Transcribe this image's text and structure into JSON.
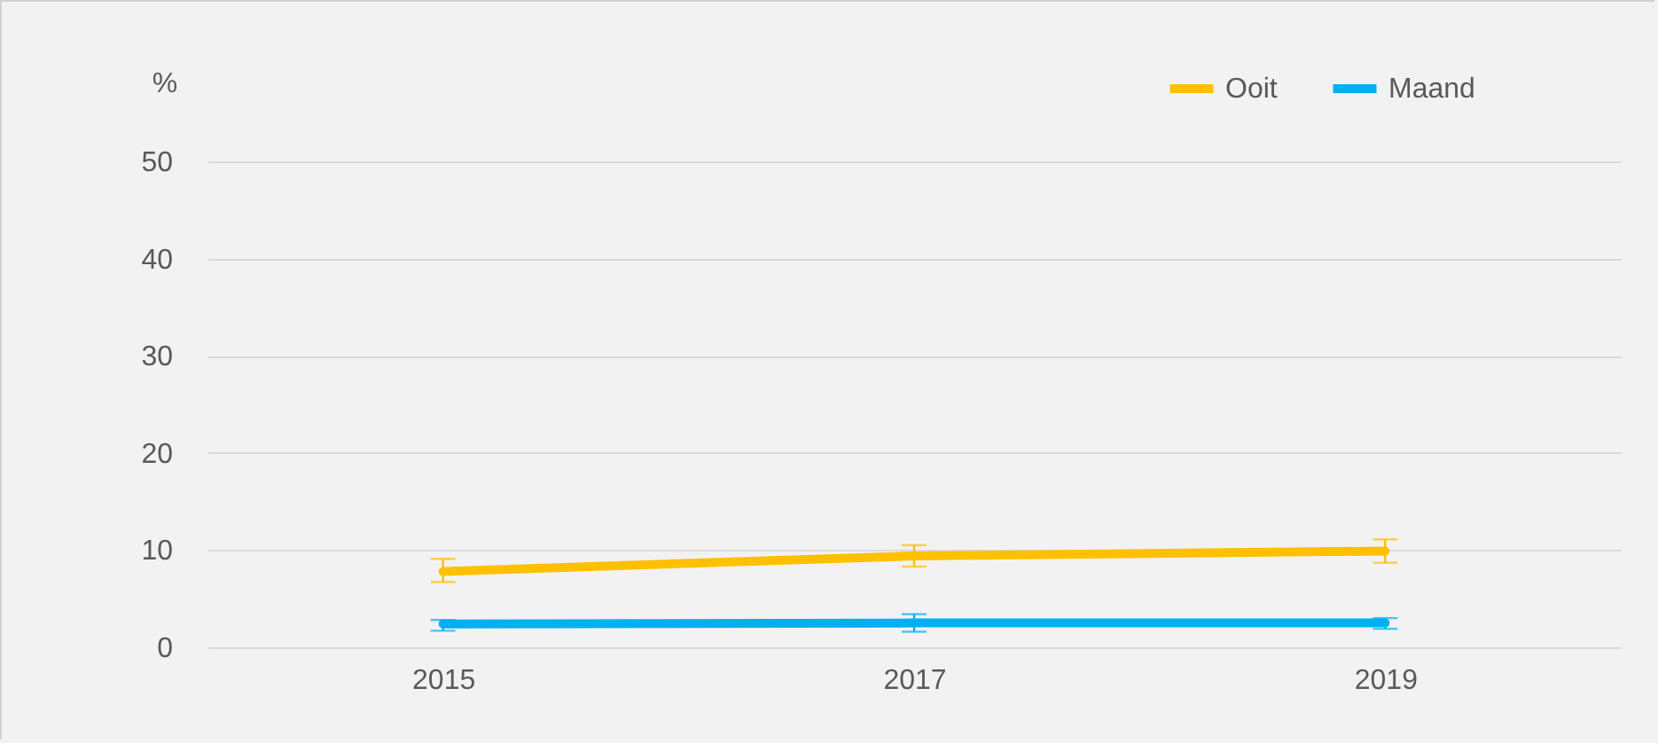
{
  "chart_data": {
    "type": "line",
    "ylabel": "%",
    "categories": [
      "2015",
      "2017",
      "2019"
    ],
    "series": [
      {
        "name": "Ooit",
        "color": "#ffc000",
        "values": [
          7.8,
          9.4,
          9.9
        ],
        "errors": [
          [
            6.7,
            9.1
          ],
          [
            8.3,
            10.5
          ],
          [
            8.7,
            11.1
          ]
        ]
      },
      {
        "name": "Maand",
        "color": "#00b0f0",
        "values": [
          2.4,
          2.5,
          2.5
        ],
        "errors": [
          [
            1.7,
            2.8
          ],
          [
            1.6,
            3.4
          ],
          [
            1.9,
            3.0
          ]
        ]
      }
    ],
    "ylim": [
      0,
      50
    ],
    "yticks": [
      0,
      10,
      20,
      30,
      40,
      50
    ],
    "grid": "y",
    "legend": "top right",
    "marker": "none",
    "line_style": "solid"
  }
}
